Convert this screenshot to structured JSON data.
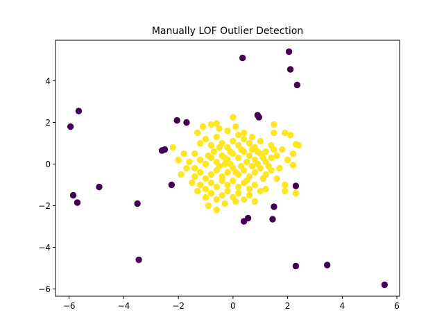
{
  "chart_data": {
    "type": "scatter",
    "title": "Manually LOF Outlier Detection",
    "xlabel": "",
    "ylabel": "",
    "xlim": [
      -6.5,
      6.1
    ],
    "ylim": [
      -6.35,
      5.95
    ],
    "x_ticks": [
      -6,
      -4,
      -2,
      0,
      2,
      4,
      6
    ],
    "y_ticks": [
      -6,
      -4,
      -2,
      0,
      2,
      4
    ],
    "x_tick_labels": [
      "−6",
      "−4",
      "−2",
      "0",
      "2",
      "4",
      "6"
    ],
    "y_tick_labels": [
      "−6",
      "−4",
      "−2",
      "0",
      "2",
      "4"
    ],
    "grid": false,
    "legend": "none",
    "colors": {
      "inlier": "#fde725",
      "outlier": "#440154"
    },
    "series": [
      {
        "role": "inlier",
        "points": [
          [
            -1.4,
            0.5
          ],
          [
            -1.2,
            1.0
          ],
          [
            -1.0,
            1.2
          ],
          [
            -0.8,
            0.9
          ],
          [
            -0.6,
            1.3
          ],
          [
            -0.4,
            1.0
          ],
          [
            -0.2,
            0.8
          ],
          [
            0.0,
            1.1
          ],
          [
            0.2,
            0.9
          ],
          [
            0.4,
            1.2
          ],
          [
            0.6,
            1.0
          ],
          [
            0.8,
            0.8
          ],
          [
            1.0,
            1.1
          ],
          [
            1.2,
            0.6
          ],
          [
            1.4,
            0.9
          ],
          [
            1.6,
            0.4
          ],
          [
            1.8,
            0.7
          ],
          [
            2.0,
            0.2
          ],
          [
            2.2,
            0.5
          ],
          [
            2.4,
            0.9
          ],
          [
            -1.6,
            0.1
          ],
          [
            -1.4,
            -0.2
          ],
          [
            -1.2,
            0.2
          ],
          [
            -1.0,
            0.0
          ],
          [
            -0.8,
            0.3
          ],
          [
            -0.6,
            0.1
          ],
          [
            -0.4,
            0.4
          ],
          [
            -0.2,
            0.2
          ],
          [
            0.0,
            0.5
          ],
          [
            0.2,
            0.3
          ],
          [
            0.4,
            0.6
          ],
          [
            0.6,
            0.4
          ],
          [
            0.8,
            0.2
          ],
          [
            1.0,
            0.5
          ],
          [
            1.2,
            0.1
          ],
          [
            1.4,
            0.3
          ],
          [
            -1.4,
            -0.6
          ],
          [
            -1.2,
            -0.4
          ],
          [
            -1.0,
            -0.7
          ],
          [
            -0.8,
            -0.5
          ],
          [
            -0.6,
            -0.3
          ],
          [
            -0.4,
            -0.6
          ],
          [
            -0.2,
            -0.4
          ],
          [
            0.0,
            -0.2
          ],
          [
            0.2,
            -0.5
          ],
          [
            0.4,
            -0.3
          ],
          [
            0.6,
            -0.6
          ],
          [
            0.8,
            -0.4
          ],
          [
            1.0,
            -0.2
          ],
          [
            1.2,
            -0.5
          ],
          [
            1.4,
            -0.3
          ],
          [
            1.6,
            -0.7
          ],
          [
            -1.2,
            -1.0
          ],
          [
            -1.0,
            -1.2
          ],
          [
            -0.8,
            -0.9
          ],
          [
            -0.6,
            -1.1
          ],
          [
            -0.4,
            -0.8
          ],
          [
            -0.2,
            -1.0
          ],
          [
            0.0,
            -0.8
          ],
          [
            0.2,
            -1.1
          ],
          [
            0.4,
            -0.9
          ],
          [
            0.6,
            -1.2
          ],
          [
            0.8,
            -1.0
          ],
          [
            1.0,
            -1.3
          ],
          [
            -1.0,
            -1.6
          ],
          [
            -0.8,
            -1.4
          ],
          [
            -0.6,
            -1.7
          ],
          [
            -0.4,
            -1.5
          ],
          [
            -0.2,
            -1.3
          ],
          [
            0.0,
            -1.6
          ],
          [
            0.2,
            -1.4
          ],
          [
            0.4,
            -1.7
          ],
          [
            0.6,
            -1.5
          ],
          [
            0.8,
            -1.8
          ],
          [
            -0.9,
            -2.0
          ],
          [
            -0.6,
            -2.2
          ],
          [
            -0.3,
            -1.9
          ],
          [
            0.1,
            -1.8
          ],
          [
            -1.1,
            1.8
          ],
          [
            -0.8,
            1.9
          ],
          [
            -0.5,
            1.7
          ],
          [
            -0.2,
            1.6
          ],
          [
            0.1,
            1.8
          ],
          [
            0.4,
            1.5
          ],
          [
            0.7,
            1.3
          ],
          [
            0.0,
            2.25
          ],
          [
            0.2,
            1.4
          ],
          [
            -0.6,
            1.95
          ],
          [
            1.5,
            1.9
          ],
          [
            1.5,
            1.5
          ],
          [
            1.9,
            1.5
          ],
          [
            2.1,
            1.4
          ],
          [
            2.3,
            0.95
          ],
          [
            -2.0,
            0.2
          ],
          [
            -1.8,
            0.5
          ],
          [
            -2.2,
            0.8
          ],
          [
            -1.9,
            -0.5
          ],
          [
            -1.7,
            -0.2
          ],
          [
            -1.3,
            -1.3
          ],
          [
            -1.3,
            1.5
          ],
          [
            2.3,
            -1.4
          ],
          [
            1.9,
            -1.3
          ],
          [
            1.9,
            -1.0
          ],
          [
            1.2,
            -1.2
          ],
          [
            2.2,
            -0.05
          ],
          [
            0.3,
            -0.1
          ],
          [
            -0.1,
            0.0
          ],
          [
            0.5,
            0.1
          ],
          [
            0.9,
            0.0
          ],
          [
            -0.5,
            -0.1
          ],
          [
            -0.3,
            0.0
          ],
          [
            0.7,
            -0.1
          ],
          [
            1.1,
            0.3
          ],
          [
            1.3,
            -0.1
          ],
          [
            -0.7,
            0.6
          ],
          [
            -0.9,
            0.4
          ],
          [
            0.1,
            -0.4
          ],
          [
            0.3,
            0.7
          ],
          [
            0.5,
            -0.8
          ],
          [
            -0.1,
            0.6
          ],
          [
            1.7,
            -0.2
          ],
          [
            1.5,
            0.7
          ],
          [
            0.9,
            0.6
          ],
          [
            -0.3,
            0.3
          ],
          [
            1.1,
            -0.7
          ],
          [
            0.7,
            0.7
          ],
          [
            -1.5,
            -0.9
          ],
          [
            -0.5,
            0.8
          ]
        ]
      },
      {
        "role": "outlier",
        "points": [
          [
            0.35,
            5.1
          ],
          [
            2.05,
            5.4
          ],
          [
            2.1,
            4.55
          ],
          [
            2.35,
            3.8
          ],
          [
            -5.65,
            2.55
          ],
          [
            -5.95,
            1.8
          ],
          [
            -2.05,
            2.1
          ],
          [
            -1.7,
            2.0
          ],
          [
            0.9,
            2.35
          ],
          [
            0.95,
            2.25
          ],
          [
            -2.6,
            0.65
          ],
          [
            -2.5,
            0.7
          ],
          [
            -2.25,
            -1.0
          ],
          [
            -4.9,
            -1.1
          ],
          [
            -5.85,
            -1.5
          ],
          [
            -5.7,
            -1.85
          ],
          [
            -3.5,
            -1.9
          ],
          [
            2.3,
            -1.05
          ],
          [
            1.5,
            -2.05
          ],
          [
            0.55,
            -2.6
          ],
          [
            0.4,
            -2.75
          ],
          [
            1.45,
            -2.65
          ],
          [
            -3.45,
            -4.6
          ],
          [
            2.3,
            -4.9
          ],
          [
            3.45,
            -4.85
          ],
          [
            5.55,
            -5.8
          ]
        ]
      }
    ]
  }
}
